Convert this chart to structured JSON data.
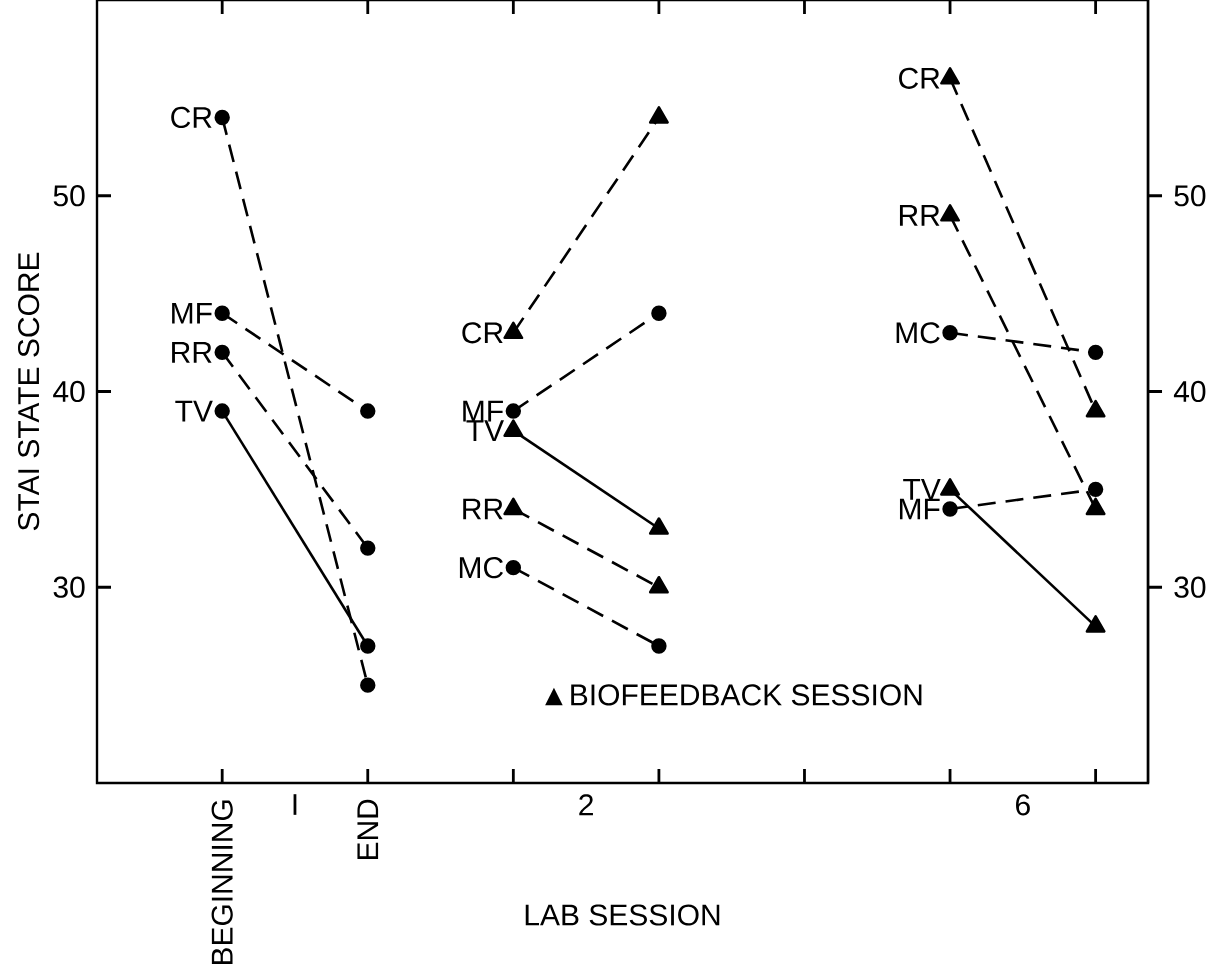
{
  "chart_data": {
    "type": "line",
    "xlabel": "LAB SESSION",
    "ylabel": "STAI STATE SCORE",
    "categories": [
      "BEGINNING",
      "END",
      null,
      null,
      null,
      null,
      null
    ],
    "ylim": [
      20,
      60
    ],
    "y2lim": [
      20,
      60
    ],
    "yticks": [
      30,
      40,
      50
    ],
    "y2ticks": [
      30,
      40,
      50
    ],
    "annotations": [
      "I",
      "2",
      "6",
      "▲BIOFEEDBACK SESSION"
    ],
    "series": [
      {
        "name": "CR",
        "color": "#000000",
        "values": [
          54,
          25,
          null,
          null,
          null,
          null,
          null
        ],
        "marker": "circle",
        "line_style": "dashed"
      },
      {
        "name": "MF",
        "color": "#000000",
        "values": [
          44,
          39,
          null,
          null,
          null,
          null,
          null
        ],
        "marker": "circle",
        "line_style": "dashed"
      },
      {
        "name": "RR",
        "color": "#000000",
        "values": [
          42,
          32,
          null,
          null,
          null,
          null,
          null
        ],
        "marker": "circle",
        "line_style": "dashed"
      },
      {
        "name": "TV",
        "color": "#000000",
        "values": [
          39,
          27,
          null,
          null,
          null,
          null,
          null
        ],
        "marker": "circle",
        "line_style": "solid"
      },
      {
        "name": "CR",
        "color": "#000000",
        "values": [
          null,
          null,
          43,
          54,
          null,
          null,
          null
        ],
        "marker": "triangle",
        "line_style": "dashed"
      },
      {
        "name": "MF",
        "color": "#000000",
        "values": [
          null,
          null,
          39,
          44,
          null,
          null,
          null
        ],
        "marker": "circle",
        "line_style": "dashed"
      },
      {
        "name": "TV",
        "color": "#000000",
        "values": [
          null,
          null,
          38,
          33,
          null,
          null,
          null
        ],
        "marker": "triangle",
        "line_style": "solid"
      },
      {
        "name": "RR",
        "color": "#000000",
        "values": [
          null,
          null,
          34,
          30,
          null,
          null,
          null
        ],
        "marker": "triangle",
        "line_style": "dashed"
      },
      {
        "name": "MC",
        "color": "#000000",
        "values": [
          null,
          null,
          31,
          27,
          null,
          null,
          null
        ],
        "marker": "circle",
        "line_style": "dashed"
      },
      {
        "name": "CR",
        "color": "#000000",
        "values": [
          null,
          null,
          null,
          null,
          null,
          56,
          39
        ],
        "marker": "triangle",
        "line_style": "dashed"
      },
      {
        "name": "RR",
        "color": "#000000",
        "values": [
          null,
          null,
          null,
          null,
          null,
          49,
          34
        ],
        "marker": "triangle",
        "line_style": "dashed"
      },
      {
        "name": "MC",
        "color": "#000000",
        "values": [
          null,
          null,
          null,
          null,
          null,
          43,
          42
        ],
        "marker": "circle",
        "line_style": "dashed"
      },
      {
        "name": "TV",
        "color": "#000000",
        "values": [
          null,
          null,
          null,
          null,
          null,
          35,
          28
        ],
        "marker": "triangle",
        "line_style": "solid"
      },
      {
        "name": "MF",
        "color": "#000000",
        "values": [
          null,
          null,
          null,
          null,
          null,
          34,
          35
        ],
        "marker": "circle",
        "line_style": "dashed"
      }
    ]
  }
}
